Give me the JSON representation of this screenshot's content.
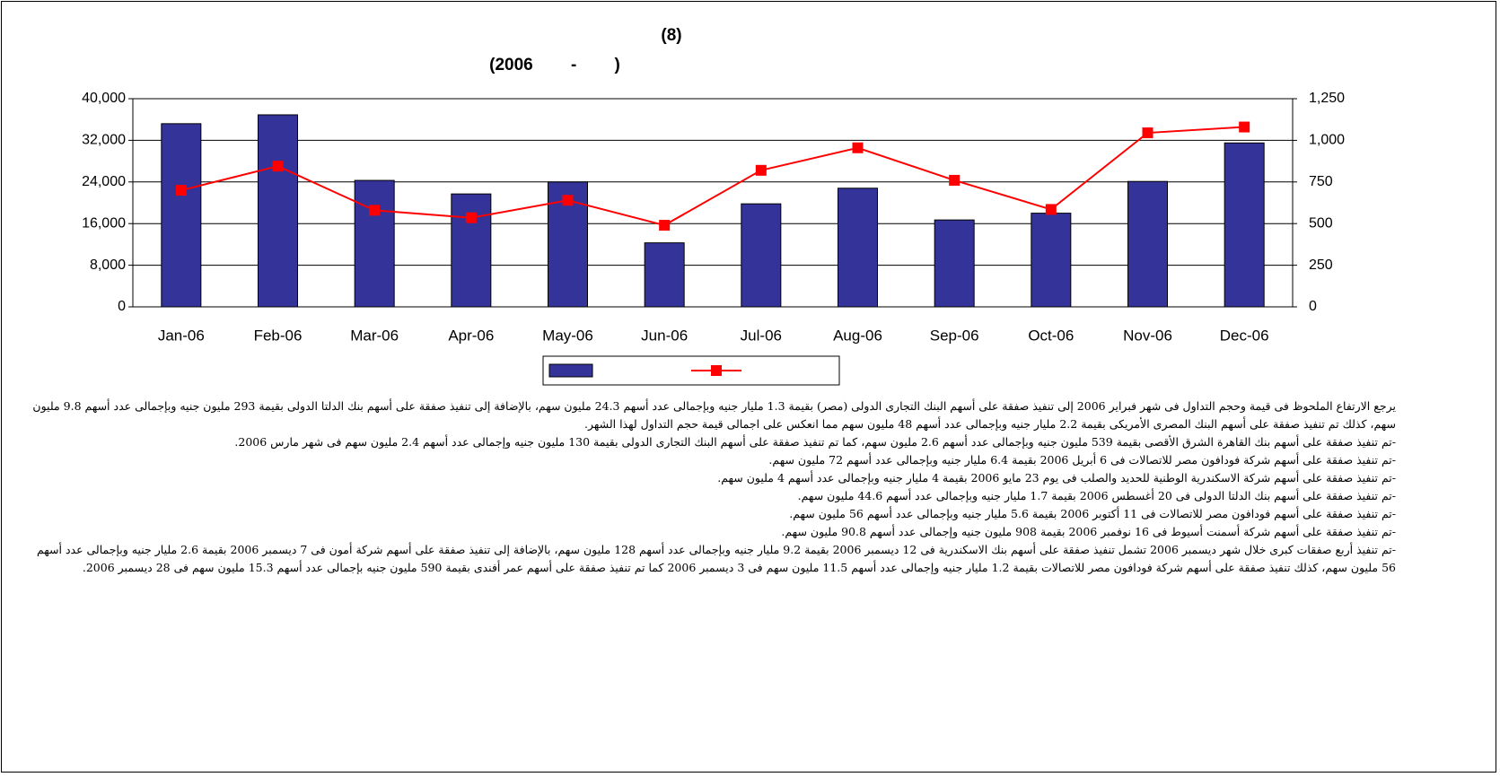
{
  "chart_data": {
    "type": "combo",
    "title": "(8)",
    "subtitle": "(2006        -        )",
    "categories": [
      "Jan-06",
      "Feb-06",
      "Mar-06",
      "Apr-06",
      "May-06",
      "Jun-06",
      "Jul-06",
      "Aug-06",
      "Sep-06",
      "Oct-06",
      "Nov-06",
      "Dec-06"
    ],
    "series": [
      {
        "type": "bar",
        "color": "#333399",
        "values": [
          35200,
          36900,
          24300,
          21700,
          24000,
          12300,
          19800,
          22800,
          16700,
          18000,
          24100,
          31500
        ]
      },
      {
        "type": "line",
        "axis": "y2",
        "color": "#ff0000",
        "values": [
          700,
          845,
          580,
          535,
          640,
          490,
          820,
          955,
          760,
          585,
          1045,
          1080
        ]
      }
    ],
    "ylim": [
      0,
      40000
    ],
    "yticks": [
      0,
      {
        "value": 8000,
        "label": "8,000"
      },
      {
        "value": 16000,
        "label": "16,000"
      },
      {
        "value": 24000,
        "label": "24,000"
      },
      {
        "value": 32000,
        "label": "32,000"
      },
      {
        "value": 40000,
        "label": "40,000"
      }
    ],
    "y2lim": [
      0,
      1250
    ],
    "y2ticks": [
      0,
      250,
      500,
      750,
      {
        "value": 1000,
        "label": "1,000"
      },
      {
        "value": 1250,
        "label": "1,250"
      }
    ],
    "grid": true,
    "legend": "bottom"
  },
  "paragraphs": [
    "يرجع الارتفاع الملحوظ فى قيمة وحجم التداول فى شهر فبراير 2006 إلى تنفيذ صفقة على أسهم البنك التجارى الدولى (مصر) بقيمة 1.3 مليار جنيه وبإجمالى عدد أسهم 24.3 مليون سهم، بالإضافة إلى تنفيذ صفقة على أسهم بنك الدلتا الدولى بقيمة 293 مليون جنيه وبإجمالى عدد أسهم 9.8 مليون سهم، كذلك تم تنفيذ صفقة على أسهم البنك المصرى الأمريكى بقيمة 2.2 مليار جنيه وبإجمالى عدد أسهم 48 مليون سهم مما انعكس على اجمالى قيمة حجم التداول لهذا الشهر.",
    "-تم تنفيذ صفقة على أسهم بنك القاهرة الشرق الأقصى بقيمة 539 مليون جنيه وبإجمالى عدد أسهم 2.6 مليون سهم، كما تم تنفيذ صفقة على أسهم البنك التجارى الدولى بقيمة 130 مليون جنيه وإجمالى عدد أسهم 2.4 مليون سهم فى شهر مارس 2006.",
    "-تم تنفيذ صفقة على أسهم شركة فودافون مصر للاتصالات فى 6 أبريل 2006 بقيمة 6.4 مليار جنيه وبإجمالى عدد أسهم 72 مليون سهم.",
    "-تم تنفيذ صفقة على أسهم شركة الاسكندرية الوطنية للحديد والصلب فى يوم 23 مايو 2006 بقيمة 4 مليار جنيه وبإجمالى عدد أسهم 4 مليون سهم.",
    "-تم تنفيذ صفقة على أسهم بنك الدلتا الدولى فى 20 أغسطس 2006 بقيمة 1.7 مليار جنيه وبإجمالى عدد أسهم 44.6 مليون سهم.",
    "-تم تنفيذ صفقة على أسهم فودافون مصر للاتصالات فى 11 أكتوبر 2006 بقيمة 5.6 مليار جنيه وبإجمالى عدد أسهم 56 مليون سهم.",
    "-تم تنفيذ صفقة على أسهم شركة أسمنت أسيوط فى 16 نوفمبر 2006 بقيمة 908 مليون جنيه وإجمالى عدد أسهم 90.8 مليون سهم.",
    "-تم تنفيذ أربع صفقات كبرى خلال شهر ديسمبر 2006 تشمل تنفيذ صفقة على أسهم بنك الاسكندرية فى 12 ديسمبر 2006 بقيمة 9.2 مليار جنيه وبإجمالى عدد أسهم 128 مليون سهم، بالإضافة إلى تنفيذ صفقة على أسهم شركة أمون فى 7 ديسمبر 2006 بقيمة 2.6 مليار جنيه وبإجمالى عدد أسهم 56 مليون سهم، كذلك تنفيذ صفقة على أسهم شركة فودافون مصر للاتصالات بقيمة 1.2 مليار جنيه وإجمالى عدد أسهم 11.5 مليون سهم فى 3 ديسمبر 2006 كما تم تنفيذ صفقة على أسهم عمر أفندى بقيمة 590 مليون جنيه بإجمالى عدد أسهم 15.3 مليون سهم فى 28 ديسمبر 2006."
  ]
}
